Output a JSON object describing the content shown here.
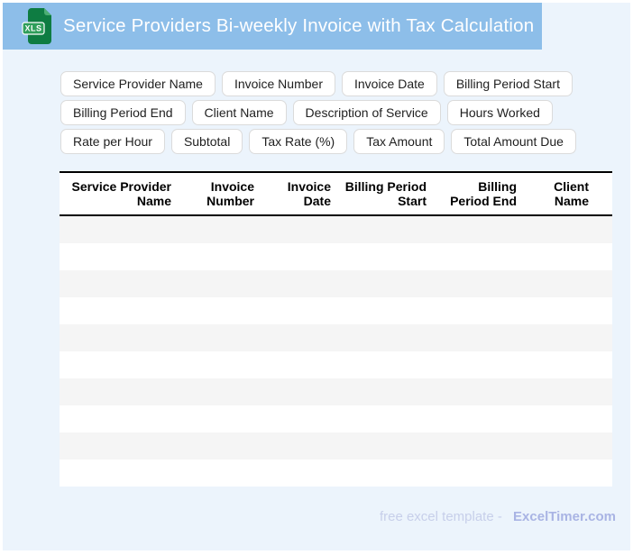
{
  "header": {
    "title": "Service Providers Bi-weekly Invoice with Tax Calculation",
    "file_badge": "XLS"
  },
  "field_chips": {
    "rows": [
      [
        "Service Provider Name",
        "Invoice Number",
        "Invoice Date",
        "Billing Period Start"
      ],
      [
        "Billing Period End",
        "Client Name",
        "Description of Service",
        "Hours Worked"
      ],
      [
        "Rate per Hour",
        "Subtotal",
        "Tax Rate (%)",
        "Tax Amount",
        "Total Amount Due"
      ]
    ]
  },
  "table": {
    "columns": [
      {
        "label": "Service Provider Name",
        "lines": [
          "Service Provider",
          "Name"
        ]
      },
      {
        "label": "Invoice Number",
        "lines": [
          "Invoice",
          "Number"
        ]
      },
      {
        "label": "Invoice Date",
        "lines": [
          "Invoice",
          "Date"
        ]
      },
      {
        "label": "Billing Period Start",
        "lines": [
          "Billing Period",
          "Start"
        ]
      },
      {
        "label": "Billing Period End",
        "lines": [
          "Billing",
          "Period End"
        ]
      },
      {
        "label": "Client Name",
        "lines": [
          "Client",
          "Name"
        ]
      }
    ],
    "empty_row_count": 10
  },
  "footer": {
    "prefix": "free excel template -",
    "brand": "ExcelTimer.com"
  },
  "colors": {
    "banner": "#8DBEE9",
    "page_background": "#ECF4FC",
    "icon_green": "#0E7C42",
    "icon_fold_green": "#4CAF74",
    "icon_badge_green": "#2F9E5B",
    "row_stripe": "#F5F5F5",
    "header_border": "#000000",
    "footer_text": "#C7CFEA",
    "footer_brand": "#A9B4E4"
  }
}
